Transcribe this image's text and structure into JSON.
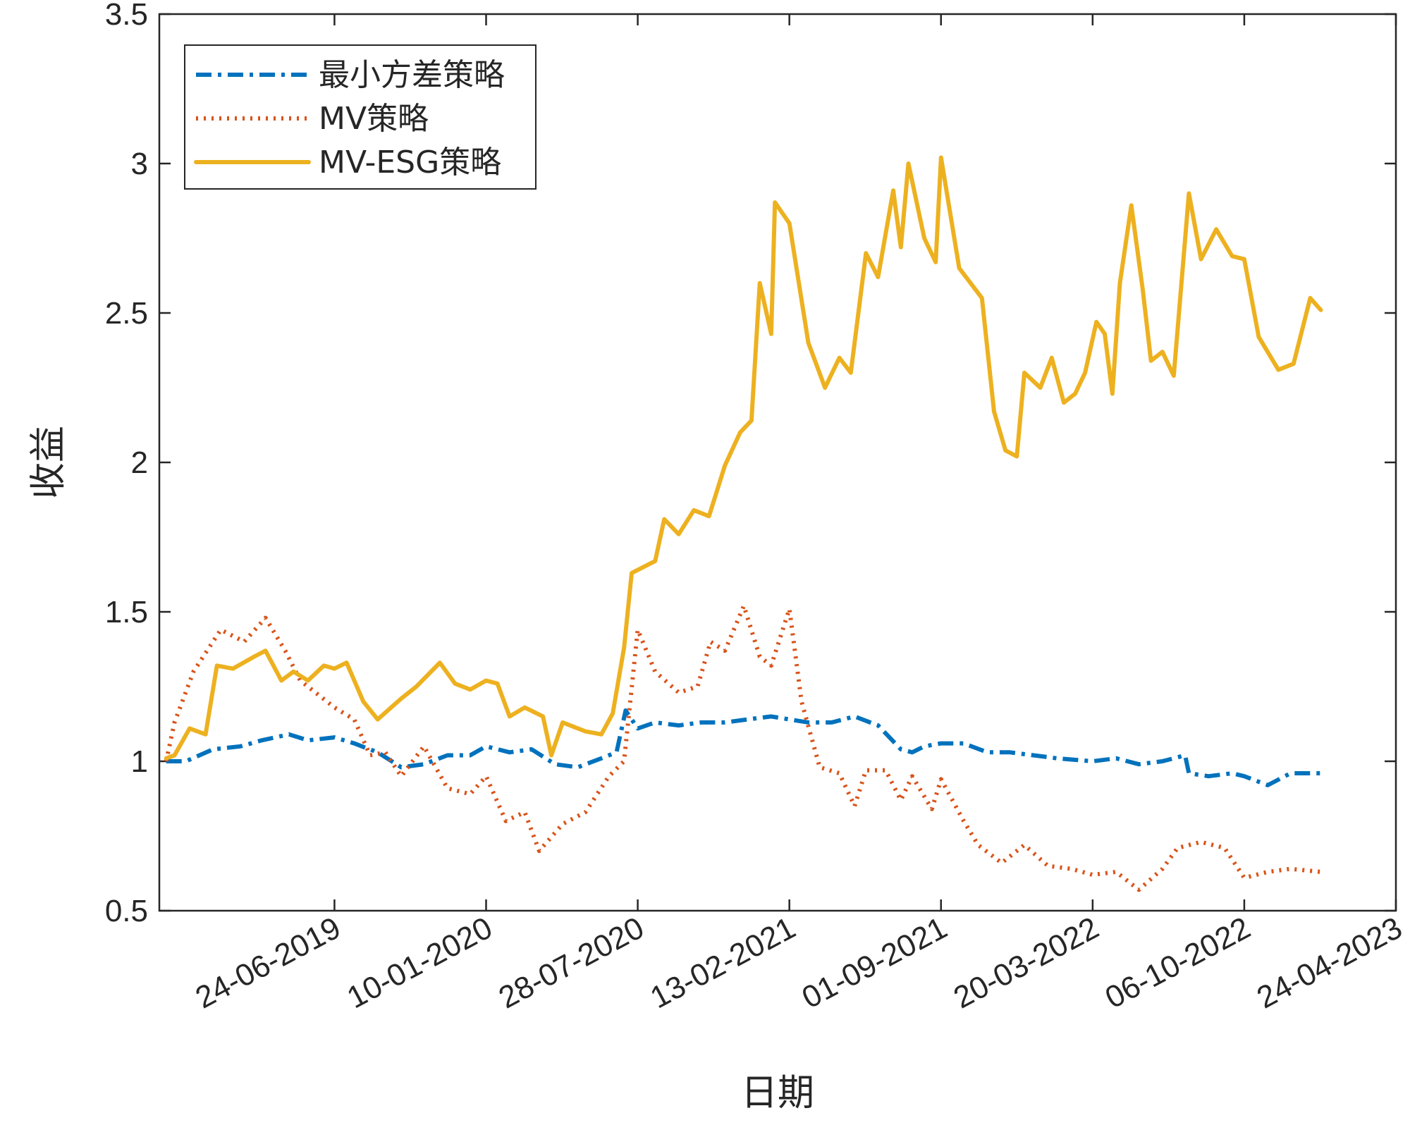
{
  "chart_data": {
    "type": "line",
    "xlabel": "日期",
    "ylabel": "收益",
    "ylim": [
      0.5,
      3.5
    ],
    "yticks": [
      0.5,
      1,
      1.5,
      2,
      2.5,
      3,
      3.5
    ],
    "ytick_labels": [
      "0.5",
      "1",
      "1.5",
      "2",
      "2.5",
      "3",
      "3.5"
    ],
    "xlim": [
      "2018-11-05",
      "2023-04-24"
    ],
    "xticks": [
      "2019-06-24",
      "2020-01-10",
      "2020-07-28",
      "2021-02-13",
      "2021-09-01",
      "2022-03-20",
      "2022-10-06",
      "2023-04-24"
    ],
    "xtick_labels": [
      "24-06-2019",
      "10-01-2020",
      "28-07-2020",
      "13-02-2021",
      "01-09-2021",
      "20-03-2022",
      "06-10-2022",
      "24-04-2023"
    ],
    "grid": false,
    "legend_position": "top-left",
    "series": [
      {
        "name": "最小方差策略",
        "color": "#0072BD",
        "style": "dashdot",
        "points": [
          [
            "2018-11-14",
            1.0
          ],
          [
            "2018-12-10",
            1.0
          ],
          [
            "2019-01-15",
            1.04
          ],
          [
            "2019-02-20",
            1.05
          ],
          [
            "2019-03-20",
            1.07
          ],
          [
            "2019-04-25",
            1.09
          ],
          [
            "2019-05-20",
            1.07
          ],
          [
            "2019-06-24",
            1.08
          ],
          [
            "2019-07-20",
            1.06
          ],
          [
            "2019-08-20",
            1.03
          ],
          [
            "2019-09-20",
            0.98
          ],
          [
            "2019-10-20",
            0.99
          ],
          [
            "2019-11-20",
            1.02
          ],
          [
            "2019-12-20",
            1.02
          ],
          [
            "2020-01-10",
            1.05
          ],
          [
            "2020-02-10",
            1.03
          ],
          [
            "2020-03-10",
            1.04
          ],
          [
            "2020-04-10",
            0.99
          ],
          [
            "2020-05-10",
            0.98
          ],
          [
            "2020-06-10",
            1.01
          ],
          [
            "2020-06-30",
            1.03
          ],
          [
            "2020-07-12",
            1.17
          ],
          [
            "2020-07-28",
            1.11
          ],
          [
            "2020-08-20",
            1.13
          ],
          [
            "2020-09-20",
            1.12
          ],
          [
            "2020-10-20",
            1.13
          ],
          [
            "2020-11-20",
            1.13
          ],
          [
            "2020-12-20",
            1.14
          ],
          [
            "2021-01-20",
            1.15
          ],
          [
            "2021-02-13",
            1.14
          ],
          [
            "2021-03-10",
            1.13
          ],
          [
            "2021-04-10",
            1.13
          ],
          [
            "2021-05-10",
            1.15
          ],
          [
            "2021-06-10",
            1.12
          ],
          [
            "2021-07-10",
            1.04
          ],
          [
            "2021-07-25",
            1.03
          ],
          [
            "2021-08-10",
            1.05
          ],
          [
            "2021-09-01",
            1.06
          ],
          [
            "2021-10-01",
            1.06
          ],
          [
            "2021-11-01",
            1.03
          ],
          [
            "2021-12-01",
            1.03
          ],
          [
            "2022-01-01",
            1.02
          ],
          [
            "2022-02-01",
            1.01
          ],
          [
            "2022-03-20",
            1.0
          ],
          [
            "2022-04-20",
            1.01
          ],
          [
            "2022-05-20",
            0.99
          ],
          [
            "2022-06-20",
            1.0
          ],
          [
            "2022-07-20",
            1.02
          ],
          [
            "2022-07-25",
            0.96
          ],
          [
            "2022-08-20",
            0.95
          ],
          [
            "2022-09-20",
            0.96
          ],
          [
            "2022-10-06",
            0.95
          ],
          [
            "2022-11-06",
            0.92
          ],
          [
            "2022-12-06",
            0.96
          ],
          [
            "2023-01-15",
            0.96
          ]
        ]
      },
      {
        "name": "MV策略",
        "color": "#D95319",
        "style": "dotted",
        "points": [
          [
            "2018-11-14",
            1.0
          ],
          [
            "2018-11-25",
            1.13
          ],
          [
            "2018-12-20",
            1.3
          ],
          [
            "2019-01-25",
            1.44
          ],
          [
            "2019-02-25",
            1.4
          ],
          [
            "2019-03-25",
            1.48
          ],
          [
            "2019-04-20",
            1.37
          ],
          [
            "2019-05-10",
            1.27
          ],
          [
            "2019-06-24",
            1.18
          ],
          [
            "2019-07-20",
            1.14
          ],
          [
            "2019-08-10",
            1.02
          ],
          [
            "2019-08-30",
            1.03
          ],
          [
            "2019-09-20",
            0.95
          ],
          [
            "2019-10-20",
            1.05
          ],
          [
            "2019-11-20",
            0.91
          ],
          [
            "2019-12-20",
            0.89
          ],
          [
            "2020-01-10",
            0.95
          ],
          [
            "2020-02-05",
            0.8
          ],
          [
            "2020-03-01",
            0.83
          ],
          [
            "2020-03-20",
            0.7
          ],
          [
            "2020-04-20",
            0.79
          ],
          [
            "2020-05-20",
            0.83
          ],
          [
            "2020-06-20",
            0.95
          ],
          [
            "2020-07-10",
            1.0
          ],
          [
            "2020-07-28",
            1.44
          ],
          [
            "2020-08-20",
            1.3
          ],
          [
            "2020-09-20",
            1.23
          ],
          [
            "2020-10-15",
            1.25
          ],
          [
            "2020-11-01",
            1.4
          ],
          [
            "2020-11-20",
            1.37
          ],
          [
            "2020-12-15",
            1.52
          ],
          [
            "2021-01-05",
            1.35
          ],
          [
            "2021-01-20",
            1.32
          ],
          [
            "2021-02-13",
            1.51
          ],
          [
            "2021-03-01",
            1.2
          ],
          [
            "2021-03-25",
            0.98
          ],
          [
            "2021-04-20",
            0.96
          ],
          [
            "2021-05-10",
            0.85
          ],
          [
            "2021-05-25",
            0.97
          ],
          [
            "2021-06-20",
            0.97
          ],
          [
            "2021-07-10",
            0.87
          ],
          [
            "2021-07-25",
            0.95
          ],
          [
            "2021-08-20",
            0.84
          ],
          [
            "2021-09-01",
            0.94
          ],
          [
            "2021-10-01",
            0.8
          ],
          [
            "2021-10-20",
            0.72
          ],
          [
            "2021-11-20",
            0.66
          ],
          [
            "2021-12-20",
            0.72
          ],
          [
            "2022-01-20",
            0.65
          ],
          [
            "2022-02-20",
            0.64
          ],
          [
            "2022-03-20",
            0.62
          ],
          [
            "2022-04-20",
            0.63
          ],
          [
            "2022-05-20",
            0.57
          ],
          [
            "2022-06-20",
            0.64
          ],
          [
            "2022-07-10",
            0.71
          ],
          [
            "2022-08-10",
            0.73
          ],
          [
            "2022-09-10",
            0.71
          ],
          [
            "2022-10-06",
            0.61
          ],
          [
            "2022-11-06",
            0.63
          ],
          [
            "2022-12-06",
            0.64
          ],
          [
            "2023-01-15",
            0.63
          ]
        ]
      },
      {
        "name": "MV-ESG策略",
        "color": "#EDB120",
        "style": "solid",
        "points": [
          [
            "2018-11-14",
            1.01
          ],
          [
            "2018-11-25",
            1.02
          ],
          [
            "2018-12-15",
            1.11
          ],
          [
            "2019-01-05",
            1.09
          ],
          [
            "2019-01-20",
            1.32
          ],
          [
            "2019-02-10",
            1.31
          ],
          [
            "2019-03-10",
            1.35
          ],
          [
            "2019-03-25",
            1.37
          ],
          [
            "2019-04-15",
            1.27
          ],
          [
            "2019-05-01",
            1.3
          ],
          [
            "2019-05-20",
            1.27
          ],
          [
            "2019-06-10",
            1.32
          ],
          [
            "2019-06-24",
            1.31
          ],
          [
            "2019-07-10",
            1.33
          ],
          [
            "2019-08-01",
            1.2
          ],
          [
            "2019-08-20",
            1.14
          ],
          [
            "2019-09-20",
            1.21
          ],
          [
            "2019-10-10",
            1.25
          ],
          [
            "2019-11-10",
            1.33
          ],
          [
            "2019-11-30",
            1.26
          ],
          [
            "2019-12-20",
            1.24
          ],
          [
            "2020-01-10",
            1.27
          ],
          [
            "2020-01-25",
            1.26
          ],
          [
            "2020-02-10",
            1.15
          ],
          [
            "2020-03-01",
            1.18
          ],
          [
            "2020-03-25",
            1.15
          ],
          [
            "2020-04-05",
            1.02
          ],
          [
            "2020-04-20",
            1.13
          ],
          [
            "2020-05-20",
            1.1
          ],
          [
            "2020-06-10",
            1.09
          ],
          [
            "2020-06-25",
            1.16
          ],
          [
            "2020-07-10",
            1.38
          ],
          [
            "2020-07-20",
            1.63
          ],
          [
            "2020-08-20",
            1.67
          ],
          [
            "2020-09-01",
            1.81
          ],
          [
            "2020-09-20",
            1.76
          ],
          [
            "2020-10-10",
            1.84
          ],
          [
            "2020-10-30",
            1.82
          ],
          [
            "2020-11-20",
            1.99
          ],
          [
            "2020-12-10",
            2.1
          ],
          [
            "2020-12-25",
            2.14
          ],
          [
            "2021-01-05",
            2.6
          ],
          [
            "2021-01-20",
            2.43
          ],
          [
            "2021-01-25",
            2.87
          ],
          [
            "2021-02-13",
            2.8
          ],
          [
            "2021-03-10",
            2.4
          ],
          [
            "2021-04-01",
            2.25
          ],
          [
            "2021-04-20",
            2.35
          ],
          [
            "2021-05-05",
            2.3
          ],
          [
            "2021-05-25",
            2.7
          ],
          [
            "2021-06-10",
            2.62
          ],
          [
            "2021-06-30",
            2.91
          ],
          [
            "2021-07-10",
            2.72
          ],
          [
            "2021-07-20",
            3.0
          ],
          [
            "2021-08-10",
            2.75
          ],
          [
            "2021-08-25",
            2.67
          ],
          [
            "2021-09-01",
            3.02
          ],
          [
            "2021-09-25",
            2.65
          ],
          [
            "2021-10-25",
            2.55
          ],
          [
            "2021-11-10",
            2.17
          ],
          [
            "2021-11-25",
            2.04
          ],
          [
            "2021-12-10",
            2.02
          ],
          [
            "2021-12-20",
            2.3
          ],
          [
            "2022-01-10",
            2.25
          ],
          [
            "2022-01-25",
            2.35
          ],
          [
            "2022-02-10",
            2.2
          ],
          [
            "2022-02-25",
            2.23
          ],
          [
            "2022-03-10",
            2.3
          ],
          [
            "2022-03-25",
            2.47
          ],
          [
            "2022-04-05",
            2.43
          ],
          [
            "2022-04-15",
            2.23
          ],
          [
            "2022-04-25",
            2.6
          ],
          [
            "2022-05-10",
            2.86
          ],
          [
            "2022-05-25",
            2.58
          ],
          [
            "2022-06-05",
            2.34
          ],
          [
            "2022-06-20",
            2.37
          ],
          [
            "2022-07-05",
            2.29
          ],
          [
            "2022-07-25",
            2.9
          ],
          [
            "2022-08-10",
            2.68
          ],
          [
            "2022-08-30",
            2.78
          ],
          [
            "2022-09-20",
            2.69
          ],
          [
            "2022-10-06",
            2.68
          ],
          [
            "2022-10-25",
            2.42
          ],
          [
            "2022-11-20",
            2.31
          ],
          [
            "2022-12-10",
            2.33
          ],
          [
            "2023-01-01",
            2.55
          ],
          [
            "2023-01-15",
            2.51
          ]
        ]
      }
    ]
  }
}
